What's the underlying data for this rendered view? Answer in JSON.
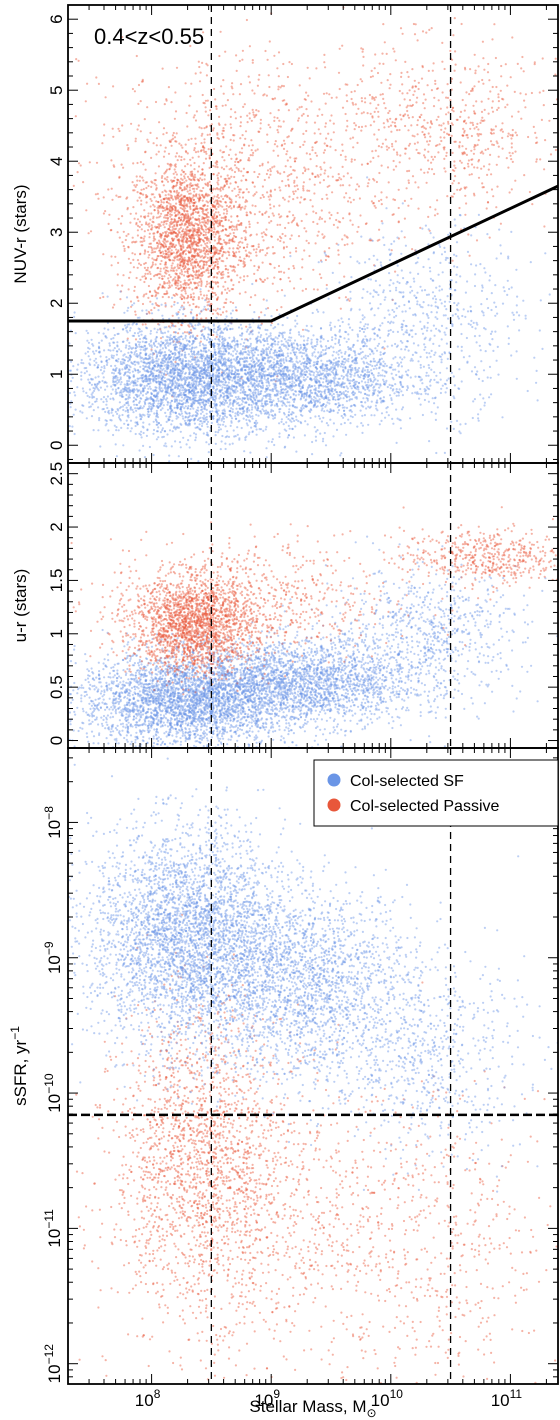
{
  "chart_data": {
    "type": "scatter",
    "shared_x": {
      "xlabel": "Stellar Mass, M",
      "xlabel_sub": "⊙",
      "xscale": "log",
      "xlim": [
        20000000.0,
        250000000000.0
      ],
      "ticks": [
        {
          "base": "10",
          "exp": "8",
          "value": 100000000.0
        },
        {
          "base": "10",
          "exp": "9",
          "value": 1000000000.0
        },
        {
          "base": "10",
          "exp": "10",
          "value": 10000000000.0
        },
        {
          "base": "10",
          "exp": "11",
          "value": 100000000000.0
        }
      ],
      "vlines": [
        316000000.0,
        31600000000.0
      ]
    },
    "colors": {
      "sf": "#6a95e6",
      "passive": "#e8573a"
    },
    "legend": {
      "placement": "top-right",
      "entries": [
        {
          "label": "Col-selected SF",
          "color": "#6a95e6"
        },
        {
          "label": "Col-selected Passive",
          "color": "#e8573a"
        }
      ]
    },
    "panels": [
      {
        "id": "nuv",
        "ylabel": "NUV-r (stars)",
        "ylim": [
          -0.25,
          6.2
        ],
        "yscale": "linear",
        "yticks": [
          {
            "label": "0",
            "value": 0
          },
          {
            "label": "1",
            "value": 1
          },
          {
            "label": "2",
            "value": 2
          },
          {
            "label": "3",
            "value": 3
          },
          {
            "label": "4",
            "value": 4
          },
          {
            "label": "5",
            "value": 5
          },
          {
            "label": "6",
            "value": 6
          }
        ],
        "annotation": "0.4<z<0.55",
        "selection_line": [
          [
            20000000.0,
            1.75
          ],
          [
            1000000000.0,
            1.75
          ],
          [
            250000000000.0,
            3.65
          ]
        ],
        "series": [
          {
            "key": "passive",
            "clusters": [
              {
                "n": 1800,
                "logx": 8.3,
                "sx": 0.22,
                "y": 2.9,
                "sy": 0.55
              },
              {
                "n": 900,
                "logx": 8.7,
                "sx": 0.55,
                "y": 3.4,
                "sy": 0.8
              },
              {
                "n": 450,
                "logx": 10.5,
                "sx": 0.45,
                "y": 4.3,
                "sy": 0.6
              },
              {
                "n": 500,
                "logx": 9.5,
                "sx": 1.0,
                "y": 4.6,
                "sy": 0.6
              }
            ]
          },
          {
            "key": "sf",
            "clusters": [
              {
                "n": 3200,
                "logx": 8.3,
                "sx": 0.45,
                "y": 0.95,
                "sy": 0.4
              },
              {
                "n": 1800,
                "logx": 9.3,
                "sx": 0.45,
                "y": 0.95,
                "sy": 0.35
              },
              {
                "n": 600,
                "logx": 10.3,
                "sx": 0.4,
                "y": 1.8,
                "sy": 0.65
              }
            ]
          }
        ]
      },
      {
        "id": "ur",
        "ylabel": "u-r (stars)",
        "ylim": [
          -0.07,
          2.6
        ],
        "yscale": "linear",
        "yticks": [
          {
            "label": "0",
            "value": 0
          },
          {
            "label": "0.5",
            "value": 0.5
          },
          {
            "label": "1",
            "value": 1
          },
          {
            "label": "1.5",
            "value": 1.5
          },
          {
            "label": "2",
            "value": 2
          },
          {
            "label": "2.5",
            "value": 2.5
          }
        ],
        "series": [
          {
            "key": "sf",
            "clusters": [
              {
                "n": 3200,
                "logx": 8.3,
                "sx": 0.45,
                "y": 0.38,
                "sy": 0.22
              },
              {
                "n": 2000,
                "logx": 9.3,
                "sx": 0.45,
                "y": 0.55,
                "sy": 0.2
              },
              {
                "n": 700,
                "logx": 10.3,
                "sx": 0.4,
                "y": 1.0,
                "sy": 0.3
              }
            ]
          },
          {
            "key": "passive",
            "clusters": [
              {
                "n": 1800,
                "logx": 8.35,
                "sx": 0.25,
                "y": 1.08,
                "sy": 0.22
              },
              {
                "n": 700,
                "logx": 8.8,
                "sx": 0.6,
                "y": 1.3,
                "sy": 0.3
              },
              {
                "n": 500,
                "logx": 10.8,
                "sx": 0.35,
                "y": 1.72,
                "sy": 0.13
              }
            ]
          }
        ]
      },
      {
        "id": "ssfr",
        "ylabel": "sSFR, yr",
        "ylabel_sup": "−1",
        "ylim_log10": [
          -12.15,
          -7.45
        ],
        "yscale": "log",
        "yticks": [
          {
            "base": "10",
            "exp": "−12",
            "value": -12
          },
          {
            "base": "10",
            "exp": "−11",
            "value": -11
          },
          {
            "base": "10",
            "exp": "−10",
            "value": -10
          },
          {
            "base": "10",
            "exp": "−9",
            "value": -9
          },
          {
            "base": "10",
            "exp": "−8",
            "value": -8
          }
        ],
        "hline": 6.9e-11,
        "series": [
          {
            "key": "passive",
            "clusters": [
              {
                "n": 1700,
                "logx": 8.4,
                "sx": 0.35,
                "y": -10.5,
                "sy": 0.55
              },
              {
                "n": 900,
                "logx": 9.3,
                "sx": 0.8,
                "y": -11.0,
                "sy": 0.55
              },
              {
                "n": 300,
                "logx": 10.5,
                "sx": 0.5,
                "y": -11.2,
                "sy": 0.5
              }
            ]
          },
          {
            "key": "sf",
            "clusters": [
              {
                "n": 3500,
                "logx": 8.3,
                "sx": 0.4,
                "y": -8.85,
                "sy": 0.4
              },
              {
                "n": 2000,
                "logx": 9.3,
                "sx": 0.45,
                "y": -9.2,
                "sy": 0.35
              },
              {
                "n": 600,
                "logx": 10.3,
                "sx": 0.4,
                "y": -9.75,
                "sy": 0.35
              }
            ]
          }
        ]
      }
    ]
  }
}
